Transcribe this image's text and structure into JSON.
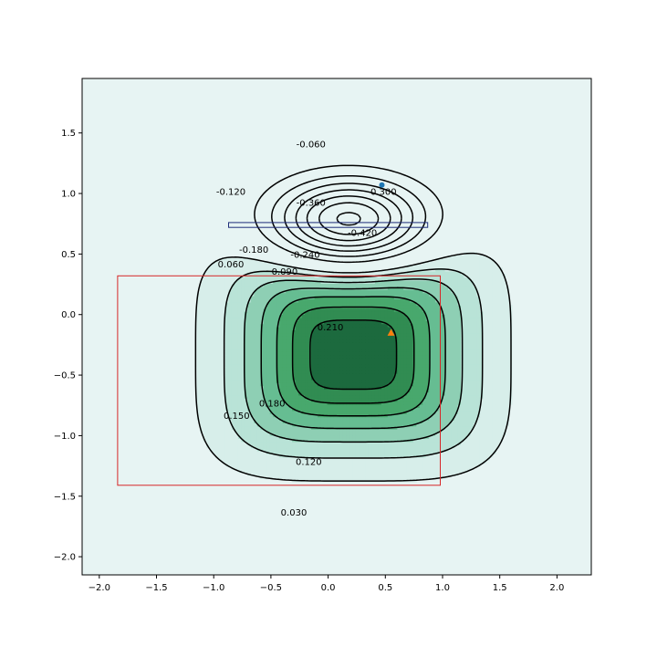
{
  "chart_data": {
    "type": "contour",
    "title": "",
    "xlabel": "",
    "ylabel": "",
    "xlim": [
      -2.15,
      2.3
    ],
    "ylim": [
      -2.15,
      1.95
    ],
    "grid": false,
    "x_ticks": [
      {
        "value": -2.0,
        "label": "−2.0"
      },
      {
        "value": -1.5,
        "label": "−1.5"
      },
      {
        "value": -1.0,
        "label": "−1.0"
      },
      {
        "value": -0.5,
        "label": "−0.5"
      },
      {
        "value": 0.0,
        "label": "0.0"
      },
      {
        "value": 0.5,
        "label": "0.5"
      },
      {
        "value": 1.0,
        "label": "1.0"
      },
      {
        "value": 1.5,
        "label": "1.5"
      },
      {
        "value": 2.0,
        "label": "2.0"
      }
    ],
    "y_ticks": [
      {
        "value": -2.0,
        "label": "−2.0"
      },
      {
        "value": -1.5,
        "label": "−1.5"
      },
      {
        "value": -1.0,
        "label": "−1.0"
      },
      {
        "value": -0.5,
        "label": "−0.5"
      },
      {
        "value": 0.0,
        "label": "0.0"
      },
      {
        "value": 0.5,
        "label": "0.5"
      },
      {
        "value": 1.0,
        "label": "1.0"
      },
      {
        "value": 1.5,
        "label": "1.5"
      }
    ],
    "colors": {
      "background": "#e7f4f3",
      "positive_fills": [
        "#d7eeea",
        "#b9e3d7",
        "#8ecfb4",
        "#66bd92",
        "#48a86d",
        "#318c52",
        "#1c6a3e"
      ],
      "negative_line": "#000000",
      "positive_line": "#000000",
      "red_rect": "#d62728",
      "blue_rect": "#1f2d7a",
      "blue_marker": "#1f77b4",
      "orange_marker": "#ff7f0e"
    },
    "positive_component": {
      "center": [
        0.22,
        -0.33
      ],
      "sx": 0.95,
      "sy": 0.72,
      "amplitude": 0.246,
      "shape_power": 4
    },
    "negative_component": {
      "center": [
        0.18,
        0.78
      ],
      "sx": 0.62,
      "sy": 0.32,
      "amplitude": -0.455
    },
    "positive_levels": [
      0.03,
      0.06,
      0.09,
      0.12,
      0.15,
      0.18,
      0.21
    ],
    "negative_levels": [
      -0.06,
      -0.12,
      -0.18,
      -0.24,
      -0.3,
      -0.36,
      -0.42
    ],
    "contour_labels": [
      {
        "value": 0.03,
        "text": "0.030",
        "x": -0.3,
        "y": -1.63
      },
      {
        "value": 0.06,
        "text": "0.060",
        "x": -0.85,
        "y": 0.42
      },
      {
        "value": 0.09,
        "text": "0.090",
        "x": -0.38,
        "y": 0.36
      },
      {
        "value": 0.12,
        "text": "0.120",
        "x": -0.17,
        "y": -1.21
      },
      {
        "value": 0.15,
        "text": "0.150",
        "x": -0.8,
        "y": -0.83
      },
      {
        "value": 0.18,
        "text": "0.180",
        "x": -0.49,
        "y": -0.73
      },
      {
        "value": 0.21,
        "text": "0.210",
        "x": 0.02,
        "y": -0.1
      },
      {
        "value": -0.06,
        "text": "-0.060",
        "x": -0.15,
        "y": 1.41
      },
      {
        "value": -0.12,
        "text": "-0.120",
        "x": -0.85,
        "y": 1.02
      },
      {
        "value": -0.18,
        "text": "-0.180",
        "x": -0.65,
        "y": 0.54
      },
      {
        "value": -0.24,
        "text": "-0.240",
        "x": -0.2,
        "y": 0.5
      },
      {
        "value": -0.3,
        "text": "-0.300",
        "x": 0.47,
        "y": 1.02
      },
      {
        "value": -0.36,
        "text": "-0.360",
        "x": -0.15,
        "y": 0.93
      },
      {
        "value": -0.42,
        "text": "-0.420",
        "x": 0.3,
        "y": 0.68
      }
    ],
    "rectangles": [
      {
        "name": "red-rectangle",
        "x0": -1.84,
        "y0": -1.41,
        "x1": 0.98,
        "y1": 0.32,
        "color_key": "red_rect"
      },
      {
        "name": "blue-rectangle",
        "x0": -0.87,
        "y0": 0.72,
        "x1": 0.87,
        "y1": 0.76,
        "color_key": "blue_rect"
      }
    ],
    "markers": [
      {
        "name": "blue-marker",
        "x": 0.47,
        "y": 1.07,
        "shape": "circle",
        "color_key": "blue_marker"
      },
      {
        "name": "orange-marker",
        "x": 0.55,
        "y": -0.15,
        "shape": "triangle",
        "color_key": "orange_marker"
      }
    ]
  }
}
